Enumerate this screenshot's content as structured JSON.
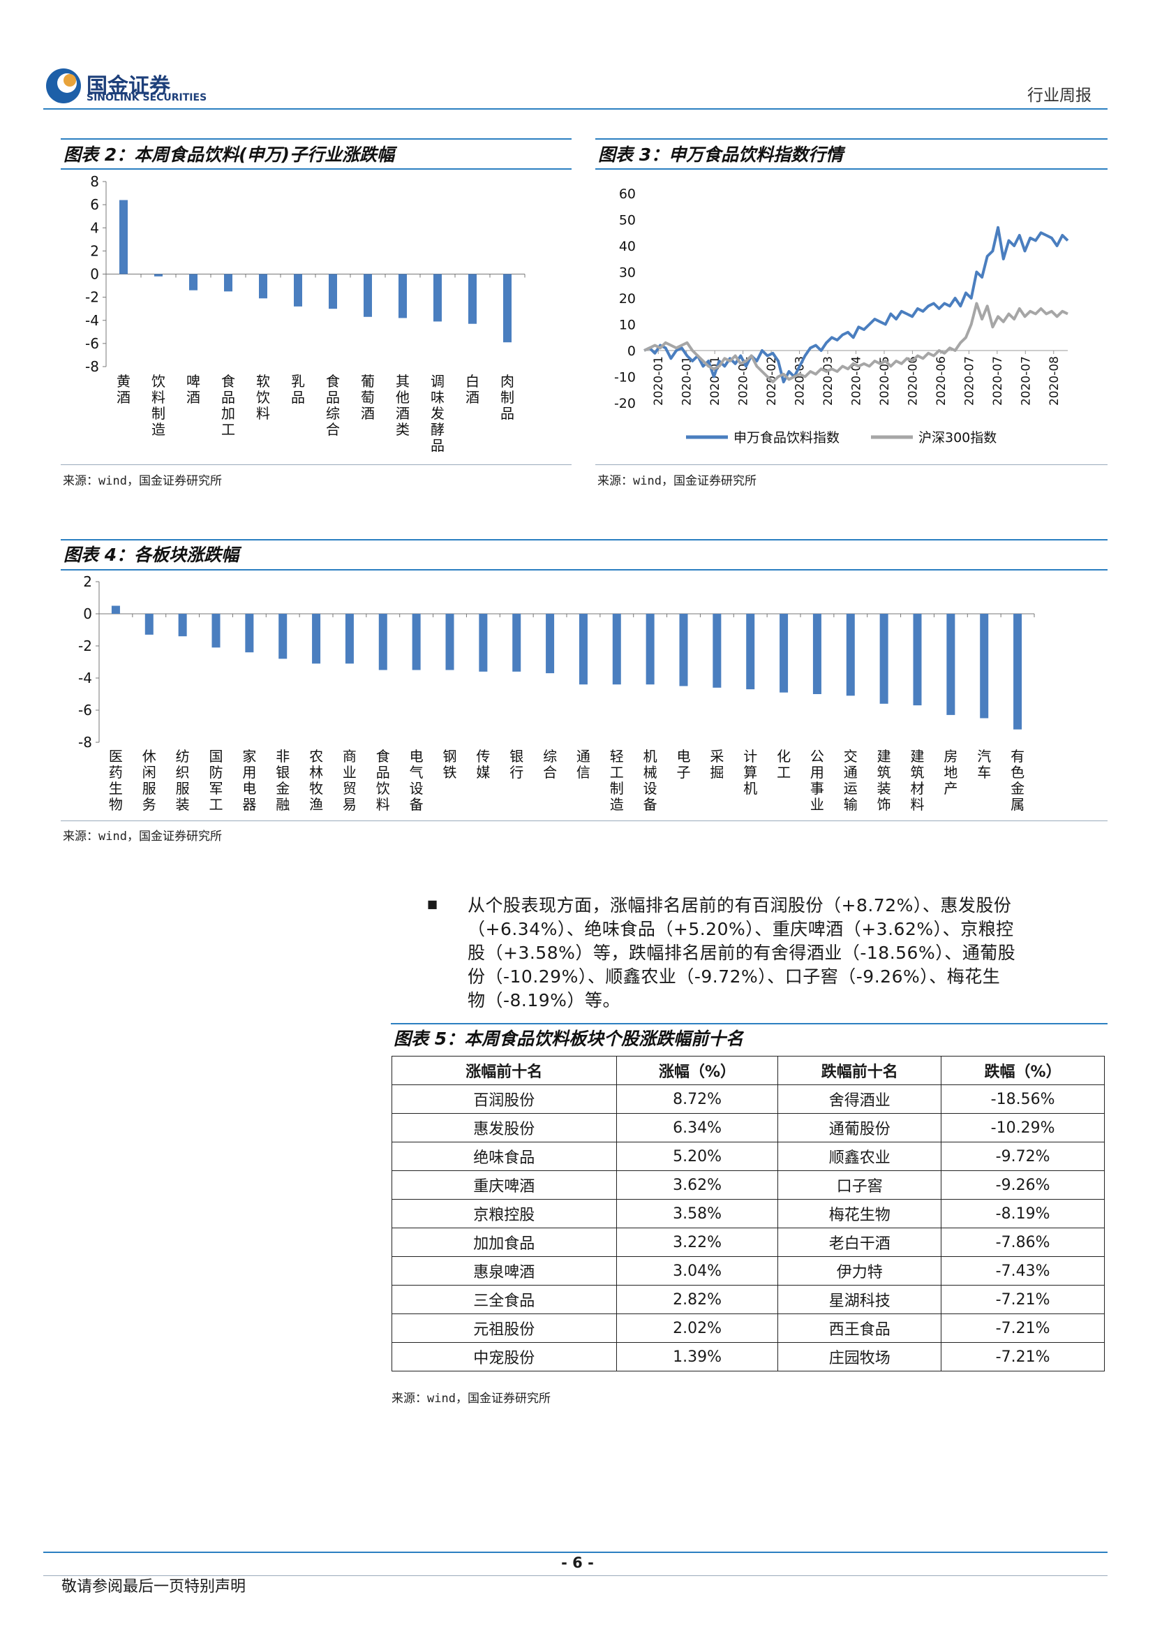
{
  "header": {
    "logo_cn": "国金证券",
    "logo_en": "SINOLINK SECURITIES",
    "report_type": "行业周报"
  },
  "fig2": {
    "title": "图表 2：本周食品饮料(申万)子行业涨跌幅",
    "source": "来源：wind，国金证券研究所"
  },
  "fig3": {
    "title": "图表 3：申万食品饮料指数行情",
    "source": "来源：wind，国金证券研究所"
  },
  "fig4": {
    "title": "图表 4：各板块涨跌幅",
    "source": "来源：wind，国金证券研究所"
  },
  "chart_data": [
    {
      "type": "bar",
      "categories": [
        "黄酒",
        "饮料制造",
        "啤酒",
        "食品加工",
        "软饮料",
        "乳品",
        "食品综合",
        "葡萄酒",
        "其他酒类",
        "调味发酵品",
        "白酒",
        "肉制品"
      ],
      "values": [
        6.4,
        -0.2,
        -1.4,
        -1.5,
        -2.1,
        -2.8,
        -3.0,
        -3.7,
        -3.8,
        -4.1,
        -4.3,
        -5.9
      ],
      "ylim": [
        -8,
        8
      ],
      "yticks": [
        "8",
        "6",
        "4",
        "2",
        "0",
        "-2",
        "-4",
        "-6",
        "-8"
      ],
      "color": "#4a7ebf"
    },
    {
      "type": "line",
      "x_ticks": [
        "2020-01",
        "2020-01",
        "2020-01",
        "2020-02",
        "2020-02",
        "2020-03",
        "2020-03",
        "2020-04",
        "2020-05",
        "2020-06",
        "2020-06",
        "2020-07",
        "2020-07",
        "2020-07",
        "2020-08"
      ],
      "ylim": [
        -20,
        60
      ],
      "yticks": [
        "60",
        "50",
        "40",
        "30",
        "20",
        "10",
        "0",
        "-10",
        "-20"
      ],
      "series": [
        {
          "name": "申万食品饮料指数",
          "color": "#4a7ebf",
          "values": [
            0,
            1,
            -1,
            2,
            1,
            -3,
            0,
            1,
            -2,
            -4,
            -2,
            -6,
            -4,
            -10,
            -4,
            -6,
            -3,
            -5,
            -2,
            -6,
            -2,
            -4,
            0,
            -2,
            -1,
            -4,
            -12,
            -8,
            -10,
            -6,
            -2,
            1,
            2,
            0,
            3,
            5,
            4,
            6,
            7,
            5,
            9,
            8,
            10,
            12,
            11,
            10,
            14,
            12,
            15,
            14,
            13,
            16,
            15,
            17,
            18,
            16,
            18,
            17,
            20,
            17,
            22,
            20,
            30,
            28,
            36,
            38,
            47,
            35,
            42,
            40,
            44,
            38,
            43,
            42,
            45,
            44,
            43,
            40,
            44,
            42
          ]
        },
        {
          "name": "沪深300指数",
          "color": "#a6a6a6",
          "values": [
            0,
            1,
            2,
            1,
            3,
            2,
            1,
            2,
            3,
            0,
            -2,
            -4,
            -6,
            -7,
            -6,
            -3,
            -4,
            -2,
            -5,
            -4,
            -2,
            -6,
            -8,
            -10,
            -12,
            -10,
            -9,
            -11,
            -10,
            -9,
            -10,
            -8,
            -9,
            -7,
            -8,
            -7,
            -8,
            -6,
            -7,
            -5,
            -6,
            -5,
            -6,
            -4,
            -5,
            -4,
            -6,
            -4,
            -5,
            -3,
            -4,
            -2,
            -3,
            -1,
            -2,
            0,
            -1,
            1,
            0,
            3,
            5,
            10,
            18,
            12,
            17,
            9,
            13,
            11,
            14,
            12,
            16,
            13,
            15,
            14,
            16,
            14,
            15,
            13,
            15,
            14
          ]
        }
      ]
    },
    {
      "type": "bar",
      "categories": [
        "医药生物",
        "休闲服务",
        "纺织服装",
        "国防军工",
        "家用电器",
        "非银金融",
        "农林牧渔",
        "商业贸易",
        "食品饮料",
        "电气设备",
        "钢铁",
        "传媒",
        "银行",
        "综合",
        "通信",
        "轻工制造",
        "机械设备",
        "电子",
        "采掘",
        "计算机",
        "化工",
        "公用事业",
        "交通运输",
        "建筑装饰",
        "建筑材料",
        "房地产",
        "汽车",
        "有色金属"
      ],
      "values": [
        0.5,
        -1.3,
        -1.4,
        -2.1,
        -2.4,
        -2.8,
        -3.1,
        -3.1,
        -3.5,
        -3.5,
        -3.5,
        -3.6,
        -3.6,
        -3.7,
        -4.4,
        -4.4,
        -4.4,
        -4.5,
        -4.6,
        -4.7,
        -4.9,
        -5.0,
        -5.1,
        -5.6,
        -5.7,
        -6.3,
        -6.5,
        -7.2
      ],
      "ylim": [
        -8,
        2
      ],
      "yticks": [
        "2",
        "0",
        "-2",
        "-4",
        "-6",
        "-8"
      ],
      "color": "#4a7ebf"
    }
  ],
  "paragraph": {
    "bullet": "■",
    "lines": [
      "从个股表现方面，涨幅排名居前的有百润股份（+8.72%）、惠发股份",
      "（+6.34%）、绝味食品（+5.20%）、重庆啤酒（+3.62%）、京粮控",
      "股（+3.58%）等，跌幅排名居前的有舍得酒业（-18.56%）、通葡股",
      "份（-10.29%）、顺鑫农业（-9.72%）、口子窖（-9.26%）、梅花生",
      "物（-8.19%）等。"
    ]
  },
  "fig5": {
    "title": "图表 5：本周食品饮料板块个股涨跌幅前十名",
    "headers": [
      "涨幅前十名",
      "涨幅（%）",
      "跌幅前十名",
      "跌幅（%）"
    ],
    "rows": [
      [
        "百润股份",
        "8.72%",
        "舍得酒业",
        "-18.56%"
      ],
      [
        "惠发股份",
        "6.34%",
        "通葡股份",
        "-10.29%"
      ],
      [
        "绝味食品",
        "5.20%",
        "顺鑫农业",
        "-9.72%"
      ],
      [
        "重庆啤酒",
        "3.62%",
        "口子窖",
        "-9.26%"
      ],
      [
        "京粮控股",
        "3.58%",
        "梅花生物",
        "-8.19%"
      ],
      [
        "加加食品",
        "3.22%",
        "老白干酒",
        "-7.86%"
      ],
      [
        "惠泉啤酒",
        "3.04%",
        "伊力特",
        "-7.43%"
      ],
      [
        "三全食品",
        "2.82%",
        "星湖科技",
        "-7.21%"
      ],
      [
        "元祖股份",
        "2.02%",
        "西王食品",
        "-7.21%"
      ],
      [
        "中宠股份",
        "1.39%",
        "庄园牧场",
        "-7.21%"
      ]
    ],
    "source": "来源：wind，国金证券研究所"
  },
  "footer": {
    "page": "- 6 -",
    "disclaimer": "敬请参阅最后一页特别声明"
  }
}
